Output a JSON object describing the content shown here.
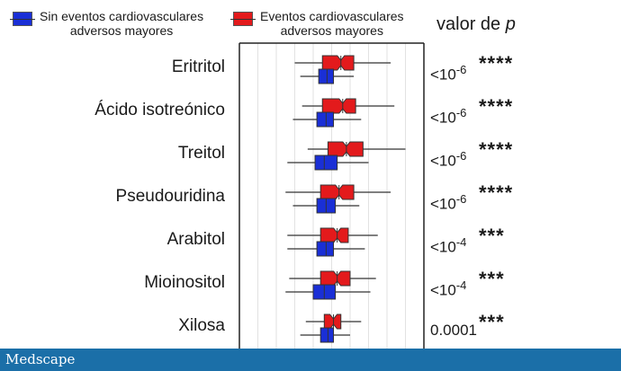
{
  "legend": {
    "no_mace": {
      "label": "Sin eventos cardiovasculares\nadversos mayores",
      "color": "#1a2fd6"
    },
    "mace": {
      "label": "Eventos cardiovasculares\nadversos mayores",
      "color": "#e31a1c"
    }
  },
  "pvalue_header": "valor de",
  "pvalue_header_symbol": "p",
  "footer": {
    "logo": "Medscape"
  },
  "chart_data": {
    "type": "boxplot",
    "title": "",
    "xlabel": "",
    "ylabel": "",
    "grid": true,
    "xlim": [
      0,
      10
    ],
    "categories": [
      "Eritritol",
      "Ácido isotreónico",
      "Treitol",
      "Pseudouridina",
      "Arabitol",
      "Mioinositol",
      "Xilosa"
    ],
    "pvalues": [
      {
        "base": "<10",
        "exp": "-6",
        "stars": "****"
      },
      {
        "base": "<10",
        "exp": "-6",
        "stars": "****"
      },
      {
        "base": "<10",
        "exp": "-6",
        "stars": "****"
      },
      {
        "base": "<10",
        "exp": "-6",
        "stars": "****"
      },
      {
        "base": "<10",
        "exp": "-4",
        "stars": "***"
      },
      {
        "base": "<10",
        "exp": "-4",
        "stars": "***"
      },
      {
        "base": "0.0001",
        "exp": "",
        "stars": "***"
      }
    ],
    "series": [
      {
        "name": "Eventos cardiovasculares adversos mayores",
        "color": "#e31a1c",
        "boxes": [
          {
            "whislo": 3.0,
            "q1": 4.5,
            "med": 5.5,
            "q3": 6.2,
            "whishi": 8.2
          },
          {
            "whislo": 3.4,
            "q1": 4.5,
            "med": 5.6,
            "q3": 6.3,
            "whishi": 8.4
          },
          {
            "whislo": 3.7,
            "q1": 4.8,
            "med": 5.8,
            "q3": 6.7,
            "whishi": 9.0
          },
          {
            "whislo": 2.5,
            "q1": 4.4,
            "med": 5.4,
            "q3": 6.2,
            "whishi": 8.2
          },
          {
            "whislo": 2.6,
            "q1": 4.4,
            "med": 5.3,
            "q3": 5.9,
            "whishi": 7.5
          },
          {
            "whislo": 2.7,
            "q1": 4.4,
            "med": 5.3,
            "q3": 6.0,
            "whishi": 7.4
          },
          {
            "whislo": 3.6,
            "q1": 4.6,
            "med": 5.1,
            "q3": 5.5,
            "whishi": 6.6
          }
        ]
      },
      {
        "name": "Sin eventos cardiovasculares adversos mayores",
        "color": "#1a2fd6",
        "boxes": [
          {
            "whislo": 3.3,
            "q1": 4.3,
            "med": 4.75,
            "q3": 5.1,
            "whishi": 6.2
          },
          {
            "whislo": 2.9,
            "q1": 4.2,
            "med": 4.7,
            "q3": 5.1,
            "whishi": 6.6
          },
          {
            "whislo": 2.6,
            "q1": 4.1,
            "med": 4.6,
            "q3": 5.3,
            "whishi": 7.0
          },
          {
            "whislo": 2.9,
            "q1": 4.2,
            "med": 4.7,
            "q3": 5.2,
            "whishi": 6.5
          },
          {
            "whislo": 2.6,
            "q1": 4.2,
            "med": 4.7,
            "q3": 5.1,
            "whishi": 6.8
          },
          {
            "whislo": 2.5,
            "q1": 4.0,
            "med": 4.6,
            "q3": 5.2,
            "whishi": 7.1
          },
          {
            "whislo": 3.3,
            "q1": 4.4,
            "med": 4.8,
            "q3": 5.1,
            "whishi": 6.0
          }
        ]
      }
    ]
  }
}
